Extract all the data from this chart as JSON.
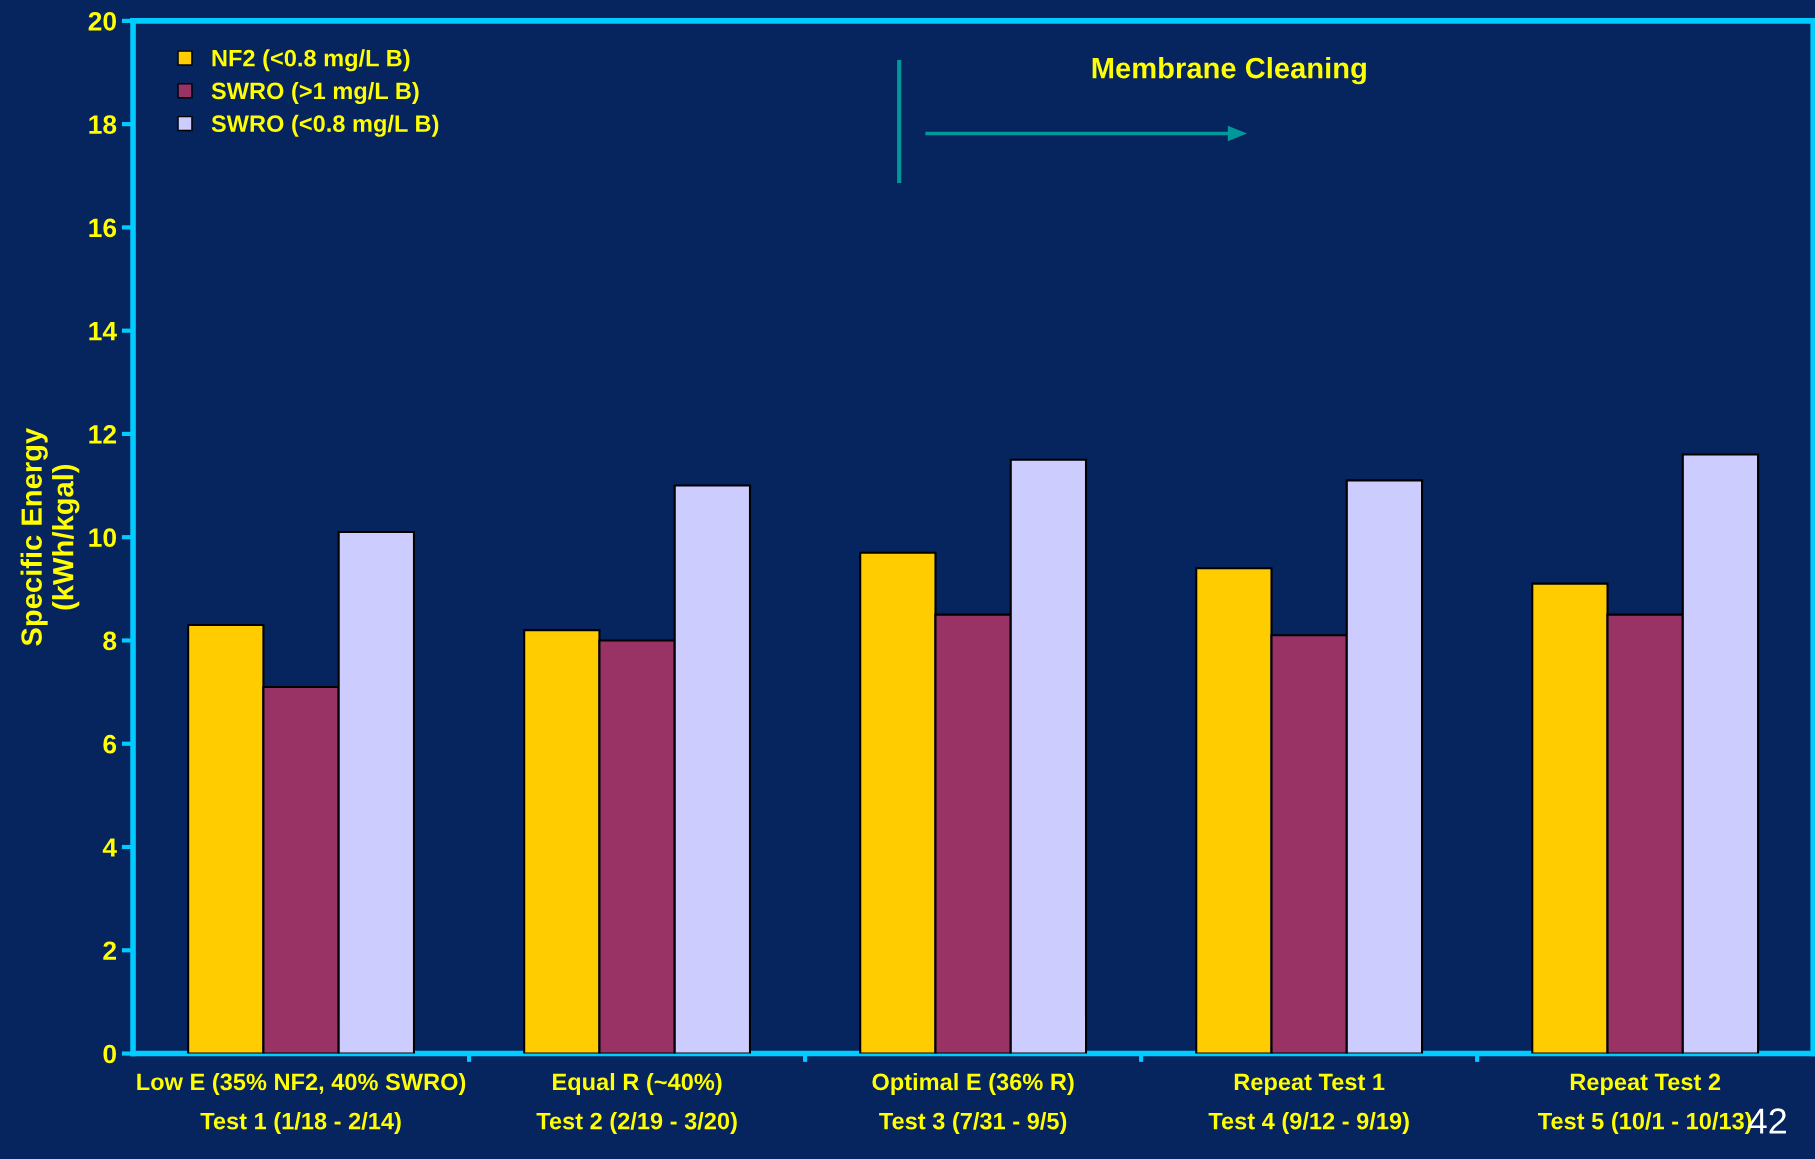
{
  "chart_data": {
    "type": "bar",
    "ylabel": "Specific Energy\n(kWh/kgal)",
    "categories": [
      "Low E (35% NF2, 40% SWRO)\nTest 1 (1/18 - 2/14)",
      "Equal R (~40%)\nTest 2 (2/19 - 3/20)",
      "Optimal E (36% R)\nTest 3 (7/31 - 9/5)",
      "Repeat Test 1\nTest 4 (9/12 - 9/19)",
      "Repeat Test 2\nTest 5 (10/1 - 10/13)"
    ],
    "series": [
      {
        "name": "NF2 (<0.8 mg/L B)",
        "color": "#ffcc00",
        "values": [
          8.3,
          8.2,
          9.7,
          9.4,
          9.1
        ]
      },
      {
        "name": "SWRO (>1 mg/L B)",
        "color": "#993366",
        "values": [
          7.1,
          8.0,
          8.5,
          8.1,
          8.5
        ]
      },
      {
        "name": "SWRO (<0.8 mg/L B)",
        "color": "#ccccff",
        "values": [
          10.1,
          11.0,
          11.5,
          11.1,
          11.6
        ]
      }
    ],
    "ylim": [
      0,
      20
    ],
    "yticks": [
      0,
      2,
      4,
      6,
      8,
      10,
      12,
      14,
      16,
      18,
      20
    ],
    "grid": false,
    "legend": "top left",
    "annotations": [
      "Membrane Cleaning",
      "42"
    ]
  }
}
